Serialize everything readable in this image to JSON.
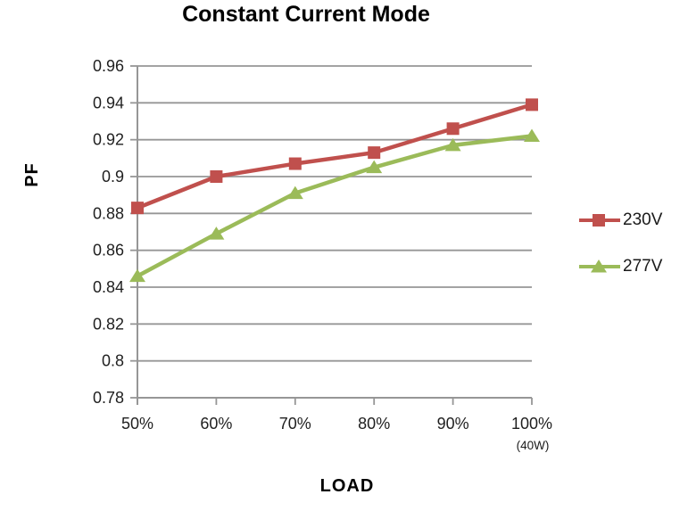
{
  "chart_data": {
    "type": "line",
    "title": "Constant Current Mode",
    "xlabel": "LOAD",
    "ylabel": "PF",
    "x_axis_note": "(40W)",
    "categories": [
      "50%",
      "60%",
      "70%",
      "80%",
      "90%",
      "100%"
    ],
    "series": [
      {
        "name": "230V",
        "marker": "square",
        "color": "#c0504d",
        "values": [
          0.883,
          0.9,
          0.907,
          0.913,
          0.926,
          0.939
        ]
      },
      {
        "name": "277V",
        "marker": "triangle",
        "color": "#9bbb59",
        "values": [
          0.846,
          0.869,
          0.891,
          0.905,
          0.917,
          0.922
        ]
      }
    ],
    "ylim": [
      0.78,
      0.96
    ],
    "ytick_step": 0.02,
    "ytick_labels": [
      "0.78",
      "0.8",
      "0.82",
      "0.84",
      "0.86",
      "0.88",
      "0.9",
      "0.92",
      "0.94",
      "0.96"
    ],
    "grid": "horizontal-only",
    "legend_position": "right",
    "colors": {
      "gridline": "#969696",
      "axis": "#969696",
      "text": "#1f1f1f",
      "background": "#ffffff"
    }
  }
}
